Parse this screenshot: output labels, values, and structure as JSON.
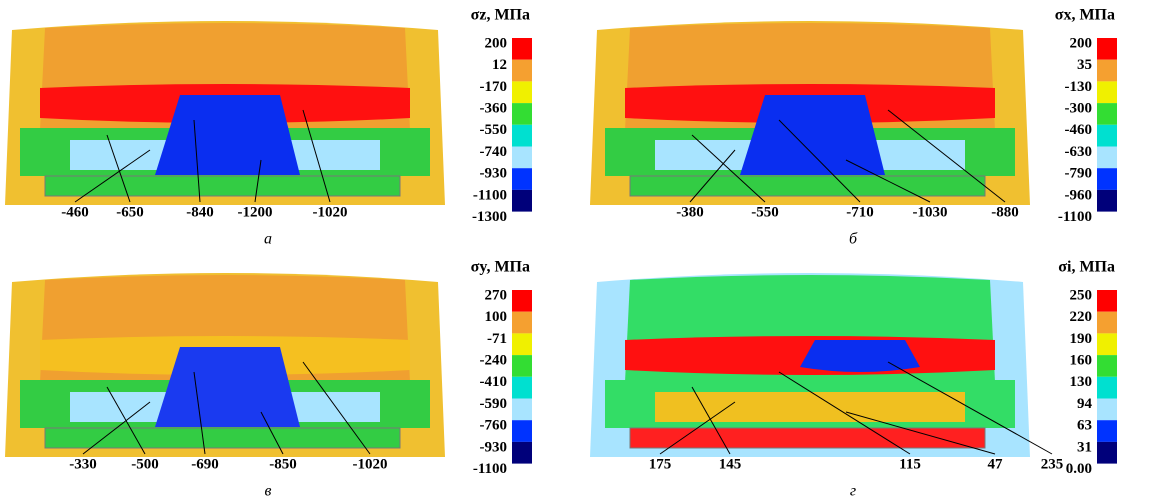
{
  "panels": [
    {
      "legend_title": "σz, МПа",
      "legend_labels": [
        "200",
        "12",
        "-170",
        "-360",
        "-550",
        "-740",
        "-930",
        "-1100",
        "-1300"
      ],
      "callouts": [
        "-460",
        "-650",
        "-840",
        "-1200",
        "-1020"
      ],
      "caption": "а"
    },
    {
      "legend_title": "σx, МПа",
      "legend_labels": [
        "200",
        "35",
        "-130",
        "-300",
        "-460",
        "-630",
        "-790",
        "-960",
        "-1100"
      ],
      "callouts": [
        "-380",
        "-550",
        "-710",
        "-1030",
        "-880"
      ],
      "caption": "б"
    },
    {
      "legend_title": "σy, МПа",
      "legend_labels": [
        "270",
        "100",
        "-71",
        "-240",
        "-410",
        "-590",
        "-760",
        "-930",
        "-1100"
      ],
      "callouts": [
        "-330",
        "-500",
        "-690",
        "-850",
        "-1020"
      ],
      "caption": "в"
    },
    {
      "legend_title": "σi, МПа",
      "legend_labels": [
        "250",
        "220",
        "190",
        "160",
        "130",
        "94",
        "63",
        "31",
        "0.00"
      ],
      "callouts": [
        "175",
        "145",
        "115",
        "47",
        "235"
      ],
      "caption": "г"
    }
  ]
}
